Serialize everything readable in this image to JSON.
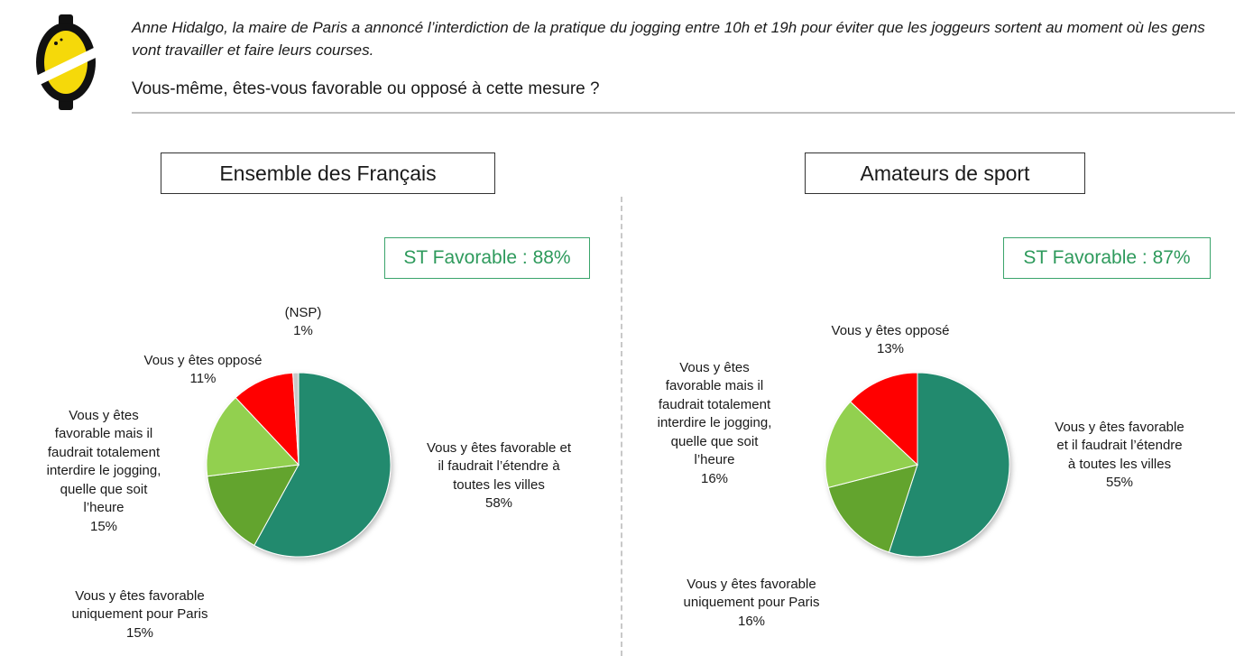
{
  "header": {
    "intro": "Anne Hidalgo, la maire de Paris a annoncé l’interdiction de la pratique du jogging entre 10h et 19h pour éviter que les joggeurs sortent au moment où les gens vont travailler et faire leurs courses.",
    "question": "Vous-même, êtes-vous favorable ou opposé à cette mesure ?"
  },
  "colors": {
    "favorable_extend": "#248a6e",
    "favorable_paris": "#64a42e",
    "favorable_total": "#92d050",
    "oppose": "#ff0000",
    "nsp": "#c8c8c8",
    "st_green": "#2e9a5c"
  },
  "chart_data": [
    {
      "type": "pie",
      "title": "Ensemble des Français",
      "annotation": "ST Favorable : 88%",
      "slices": [
        {
          "key": "favorable_extend",
          "label": "Vous y êtes favorable et\nil faudrait l’étendre à\ntoutes les villes",
          "value": 58,
          "value_label": "58%",
          "color": "#248a6e"
        },
        {
          "key": "favorable_paris",
          "label": "Vous y êtes favorable\nuniquement pour Paris",
          "value": 15,
          "value_label": "15%",
          "color": "#64a42e"
        },
        {
          "key": "favorable_total",
          "label": "Vous y êtes\nfavorable mais il\nfaudrait totalement\ninterdire le jogging,\nquelle que soit\nl’heure",
          "value": 15,
          "value_label": "15%",
          "color": "#92d050"
        },
        {
          "key": "oppose",
          "label": "Vous y êtes opposé",
          "value": 11,
          "value_label": "11%",
          "color": "#ff0000"
        },
        {
          "key": "nsp",
          "label": "(NSP)",
          "value": 1,
          "value_label": "1%",
          "color": "#c8c8c8"
        }
      ]
    },
    {
      "type": "pie",
      "title": "Amateurs de sport",
      "annotation": "ST Favorable : 87%",
      "slices": [
        {
          "key": "favorable_extend",
          "label": "Vous y êtes favorable\net il faudrait l’étendre\nà toutes les villes",
          "value": 55,
          "value_label": "55%",
          "color": "#248a6e"
        },
        {
          "key": "favorable_paris",
          "label": "Vous y êtes favorable\nuniquement pour Paris",
          "value": 16,
          "value_label": "16%",
          "color": "#64a42e"
        },
        {
          "key": "favorable_total",
          "label": "Vous y êtes\nfavorable mais il\nfaudrait totalement\ninterdire le jogging,\nquelle que soit\nl’heure",
          "value": 16,
          "value_label": "16%",
          "color": "#92d050"
        },
        {
          "key": "oppose",
          "label": "Vous y êtes opposé",
          "value": 13,
          "value_label": "13%",
          "color": "#ff0000"
        }
      ]
    }
  ]
}
